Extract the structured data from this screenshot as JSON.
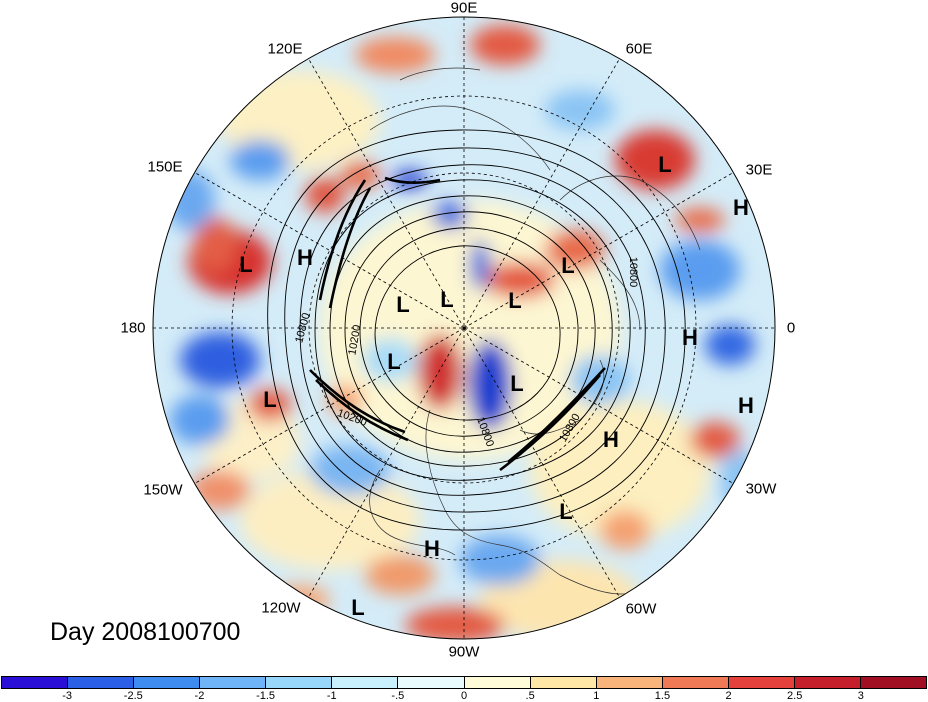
{
  "title": "Day 2008100700",
  "longitude_labels": [
    {
      "text": "90E",
      "key": "n"
    },
    {
      "text": "60E",
      "key": "nne"
    },
    {
      "text": "30E",
      "key": "ene"
    },
    {
      "text": "0",
      "key": "e"
    },
    {
      "text": "30W",
      "key": "ese"
    },
    {
      "text": "60W",
      "key": "sse"
    },
    {
      "text": "90W",
      "key": "s"
    },
    {
      "text": "120W",
      "key": "ssw"
    },
    {
      "text": "150W",
      "key": "wsw"
    },
    {
      "text": "180",
      "key": "w"
    },
    {
      "text": "150E",
      "key": "wnw"
    },
    {
      "text": "120E",
      "key": "nnw"
    }
  ],
  "pressure_centers": [
    "L",
    "H",
    "L",
    "L",
    "L",
    "L",
    "L",
    "L",
    "H",
    "L",
    "H",
    "H",
    "L",
    "H",
    "L",
    "L",
    "H"
  ],
  "contour_labels": [
    "10800",
    "10800",
    "10800",
    "10800",
    "10200",
    "10200"
  ],
  "colorbar": {
    "ticks": [
      "-3",
      "-2.5",
      "-2",
      "-1.5",
      "-1",
      "-.5",
      "0",
      ".5",
      "1",
      "1.5",
      "2",
      "2.5",
      "3"
    ],
    "colors": [
      "#2a0fd6",
      "#2a5fe6",
      "#3f8cf0",
      "#6fb4f6",
      "#98d6fa",
      "#c9f0fd",
      "#eafbfe",
      "#fefbd8",
      "#fde6a6",
      "#f8b47a",
      "#f07a56",
      "#e4413c",
      "#c51f2c",
      "#a00f22"
    ]
  }
}
